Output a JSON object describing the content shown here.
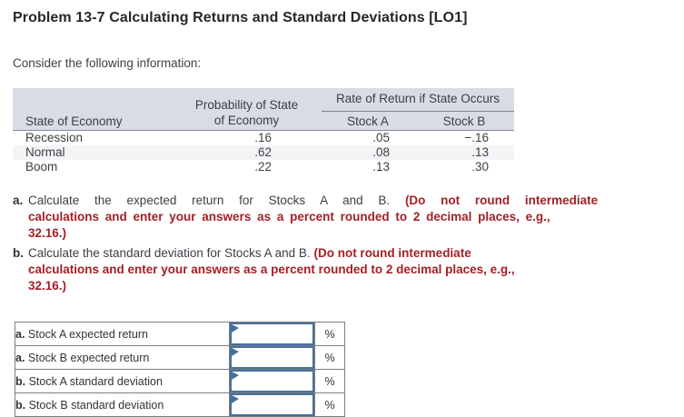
{
  "page": {
    "title": "Problem 13-7 Calculating Returns and Standard Deviations [LO1]",
    "intro": "Consider the following information:"
  },
  "info_table": {
    "span_header": "Rate of Return if State Occurs",
    "col_headers": {
      "state": "State of Economy",
      "probability_line1": "Probability of State",
      "probability_line2": "of Economy",
      "stock_a": "Stock A",
      "stock_b": "Stock B"
    },
    "rows": [
      {
        "state": "Recession",
        "probability": ".16",
        "stock_a": ".05",
        "stock_b": "−.16"
      },
      {
        "state": "Normal",
        "probability": ".62",
        "stock_a": ".08",
        "stock_b": ".13"
      },
      {
        "state": "Boom",
        "probability": ".22",
        "stock_a": ".13",
        "stock_b": ".30"
      }
    ]
  },
  "instructions": {
    "items": [
      {
        "marker": "a.",
        "line1_normal": "Calculate the expected return for Stocks A and B. ",
        "line1_red": "(Do not round intermediate",
        "line2_red": "calculations and enter your answers as a percent rounded to 2 decimal places, e.g.,",
        "line3_red": "32.16.)"
      },
      {
        "marker": "b.",
        "line1_normal": "Calculate the standard deviation for Stocks A and B. ",
        "line1_red": "(Do not round intermediate",
        "line2_red": "calculations and enter your answers as a percent rounded to 2 decimal places, e.g.,",
        "line3_red": "32.16.)"
      }
    ]
  },
  "answer_table": {
    "unit": "%",
    "rows": [
      {
        "marker": "a.",
        "label": "Stock A expected return",
        "value": ""
      },
      {
        "marker": "a.",
        "label": "Stock B expected return",
        "value": ""
      },
      {
        "marker": "b.",
        "label": "Stock A standard deviation",
        "value": ""
      },
      {
        "marker": "b.",
        "label": "Stock B standard deviation",
        "value": ""
      }
    ]
  },
  "colors": {
    "accent_blue": "#44719c",
    "alert_red": "#a32026",
    "table_header_bg": "#d7dce5",
    "stripe_bg": "#f4f4f6",
    "border_gray": "#7d7d7d",
    "text_dark": "#3a3f46"
  }
}
